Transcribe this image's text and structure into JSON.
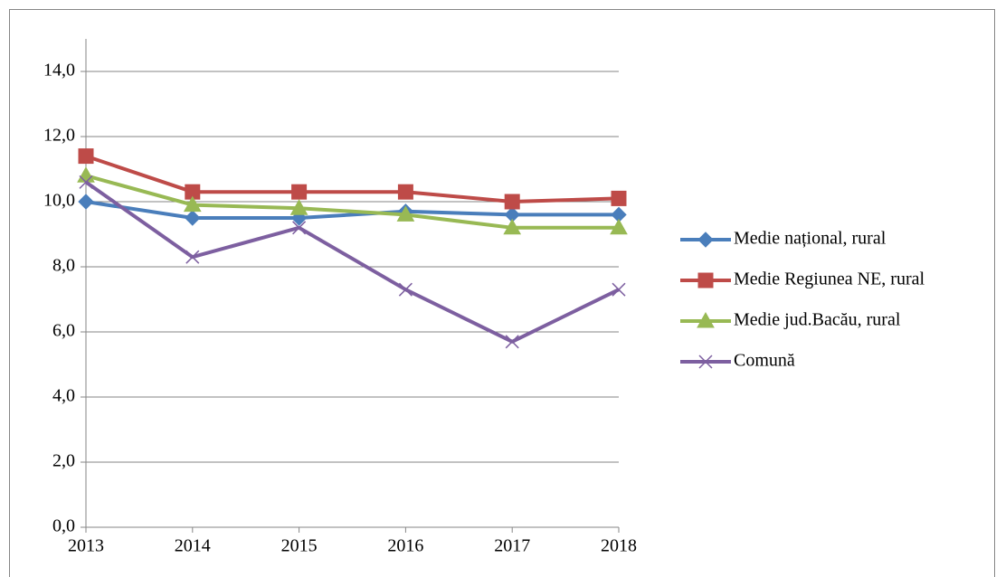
{
  "chart_data": {
    "type": "line",
    "categories": [
      "2013",
      "2014",
      "2015",
      "2016",
      "2017",
      "2018"
    ],
    "series": [
      {
        "name": "Medie național, rural",
        "color": "#4a7ebb",
        "marker": "diamond",
        "values": [
          10.0,
          9.5,
          9.5,
          9.7,
          9.6,
          9.6
        ]
      },
      {
        "name": "Medie Regiunea NE, rural",
        "color": "#be4b48",
        "marker": "square",
        "values": [
          11.4,
          10.3,
          10.3,
          10.3,
          10.0,
          10.1
        ]
      },
      {
        "name": "Medie jud.Bacău, rural",
        "color": "#98b954",
        "marker": "triangle",
        "values": [
          10.8,
          9.9,
          9.8,
          9.6,
          9.2,
          9.2
        ]
      },
      {
        "name": "Comună",
        "color": "#7d5fa0",
        "marker": "x",
        "values": [
          10.6,
          8.3,
          9.2,
          7.3,
          5.7,
          7.3
        ]
      }
    ],
    "ylim": [
      0,
      15
    ],
    "yticks": [
      {
        "value": 0,
        "label": "0,0"
      },
      {
        "value": 2,
        "label": "2,0"
      },
      {
        "value": 4,
        "label": "4,0"
      },
      {
        "value": 6,
        "label": "6,0"
      },
      {
        "value": 8,
        "label": "8,0"
      },
      {
        "value": 10,
        "label": "10,0"
      },
      {
        "value": 12,
        "label": "12,0"
      },
      {
        "value": 14,
        "label": "14,0"
      }
    ],
    "grid": true,
    "legend": "right"
  }
}
